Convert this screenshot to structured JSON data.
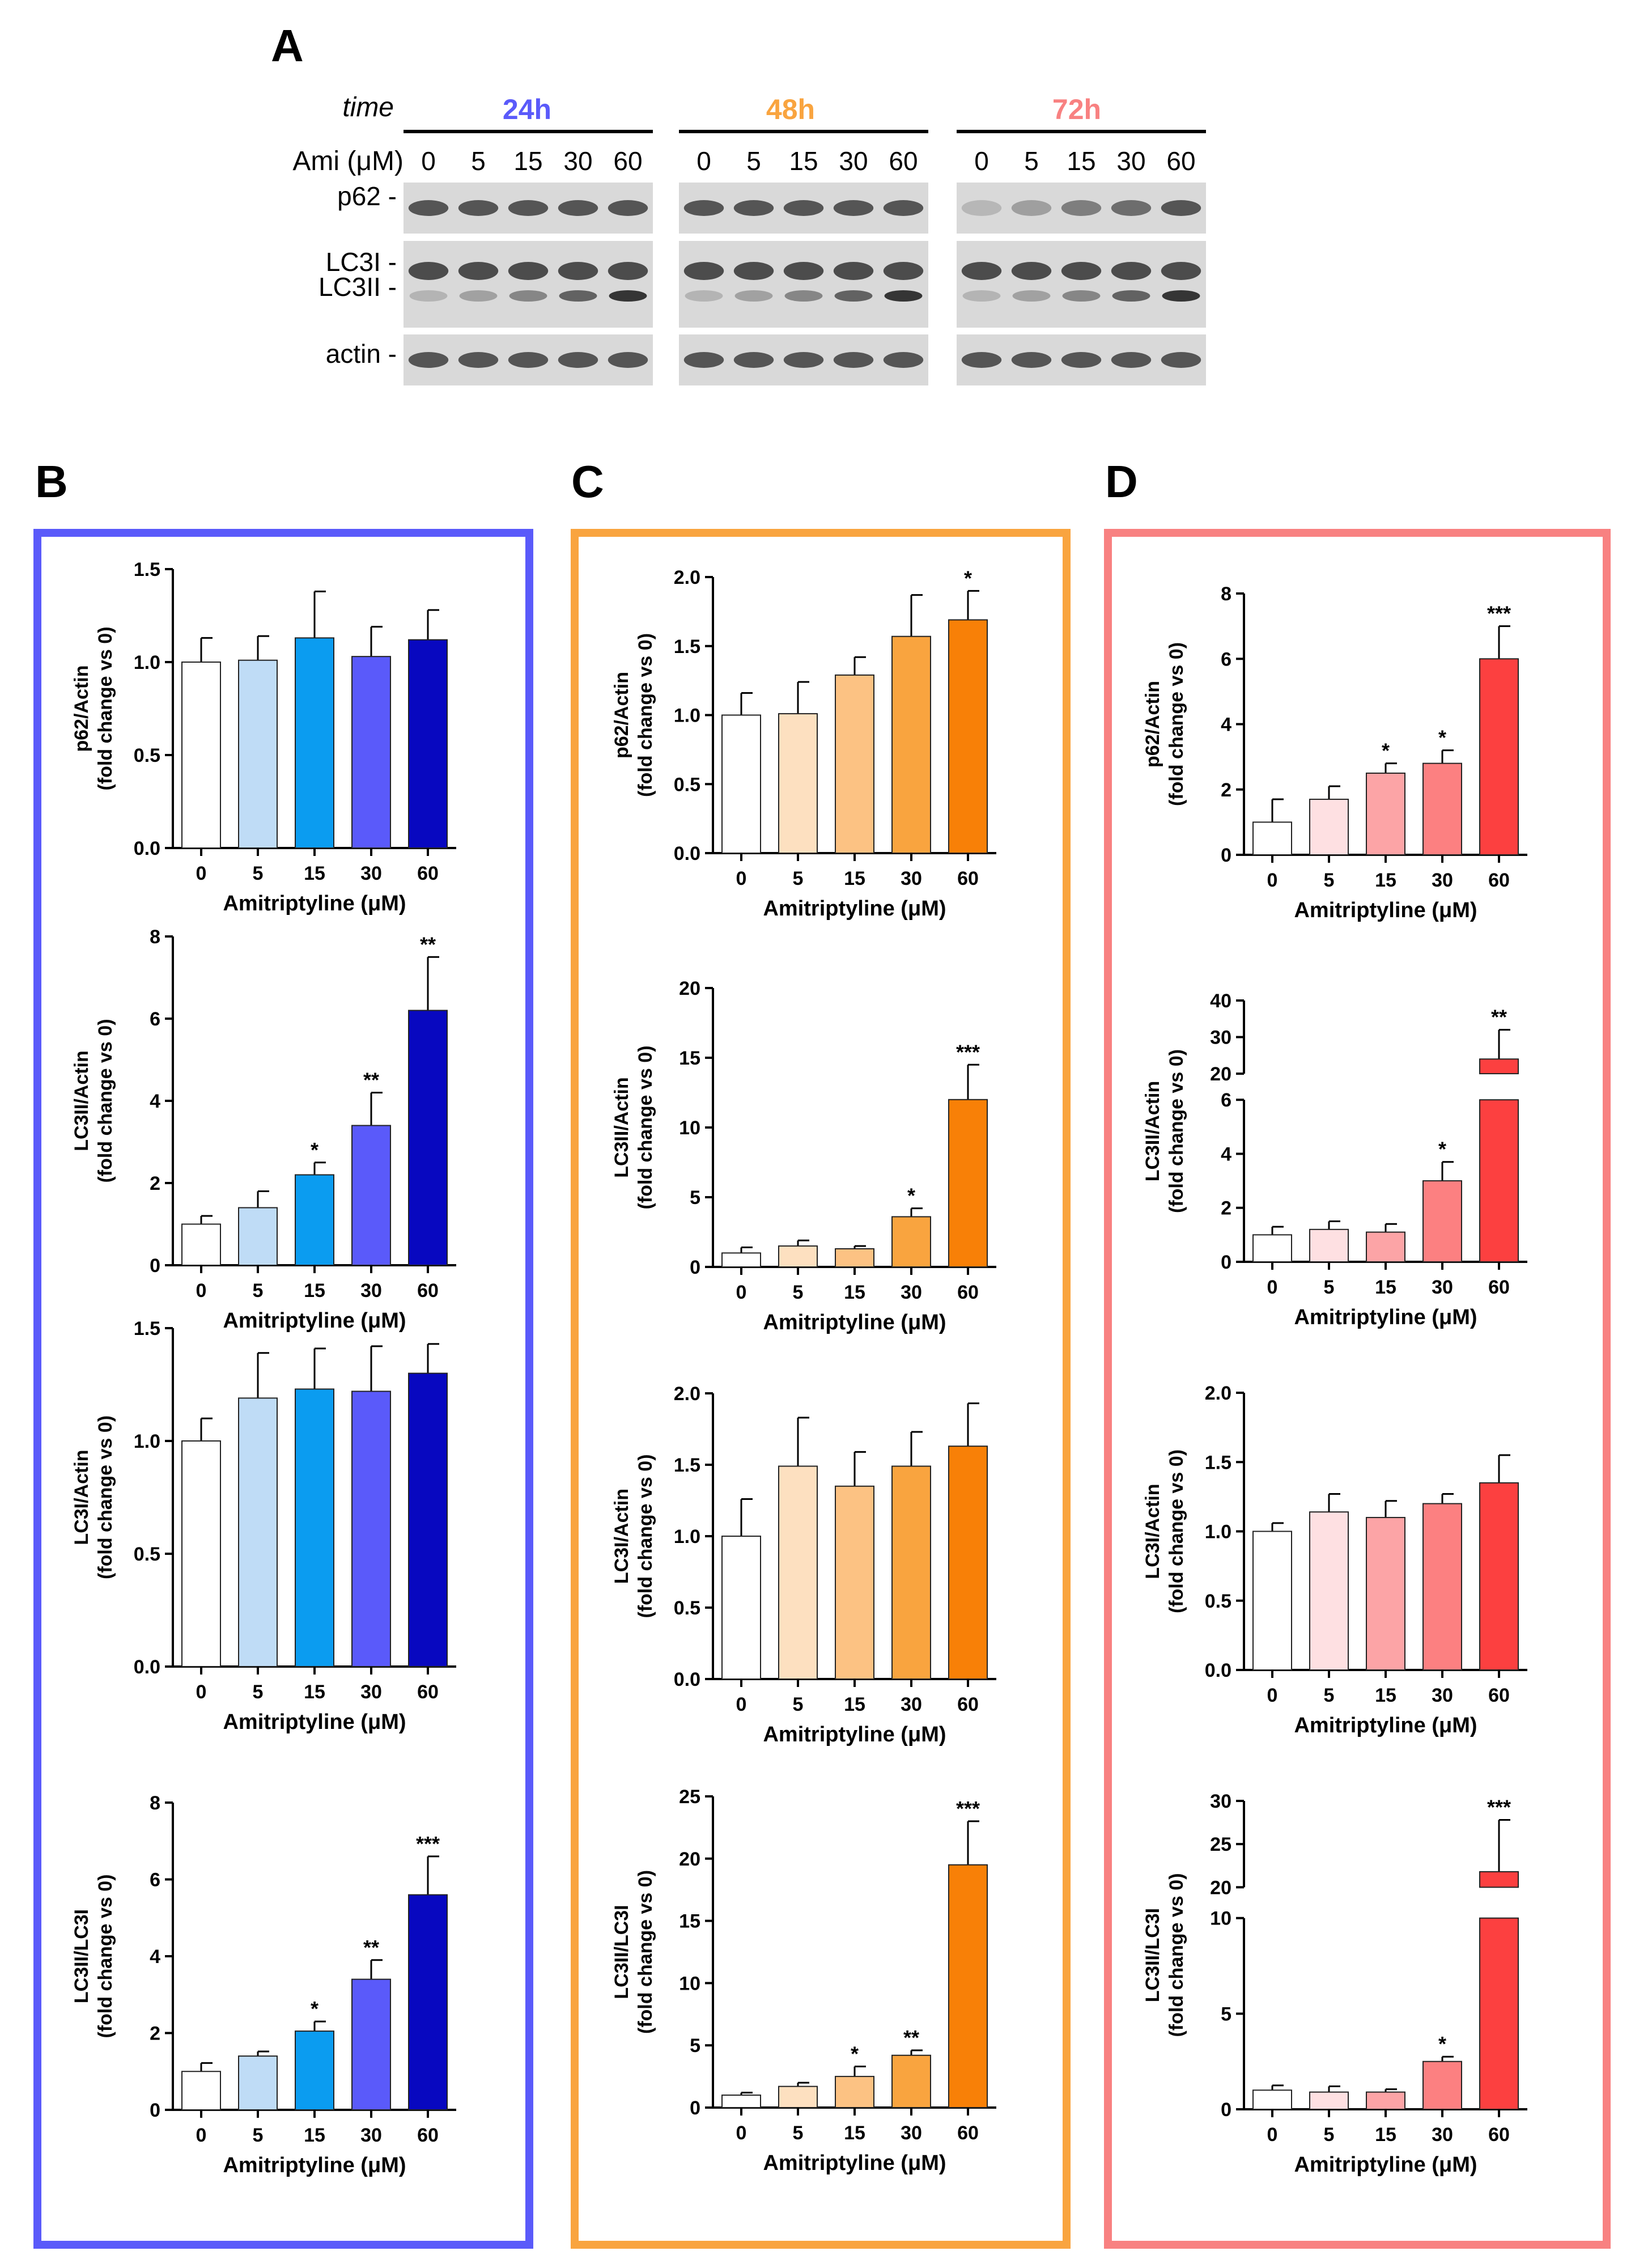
{
  "figure": {
    "panel_labels": [
      "A",
      "B",
      "C",
      "D"
    ],
    "blot": {
      "time_label": "time",
      "dose_label": "Ami (μM)",
      "groups": [
        {
          "label": "24h",
          "color": "#5a5afa"
        },
        {
          "label": "48h",
          "color": "#f9a43f"
        },
        {
          "label": "72h",
          "color": "#f88181"
        }
      ],
      "doses": [
        "0",
        "5",
        "15",
        "30",
        "60"
      ],
      "rows": [
        "p62 -",
        "LC3I -",
        "LC3II -",
        "actin -"
      ]
    },
    "frame_colors": {
      "B": "#5a5afa",
      "C": "#f9a43f",
      "D": "#f88181"
    },
    "significance_note": "*, **, *** marks shown above bars"
  },
  "chart_data": [
    {
      "id": "B1",
      "panel": "B",
      "type": "bar",
      "ylabel": [
        "p62/Actin",
        "(fold change vs 0)"
      ],
      "xlabel": "Amitriptyline (μM)",
      "categories": [
        "0",
        "5",
        "15",
        "30",
        "60"
      ],
      "values": [
        1.0,
        1.01,
        1.13,
        1.03,
        1.12
      ],
      "errors": [
        0.13,
        0.13,
        0.25,
        0.16,
        0.16
      ],
      "ylim": [
        0,
        1.5
      ],
      "yticks": [
        "0.0",
        "0.5",
        "1.0",
        "1.5"
      ],
      "sig": [
        "",
        "",
        "",
        "",
        ""
      ],
      "colors": [
        "#ffffff",
        "#bfdcf6",
        "#0b9cf0",
        "#5a5afa",
        "#0808c0"
      ]
    },
    {
      "id": "B2",
      "panel": "B",
      "type": "bar",
      "ylabel": [
        "LC3II/Actin",
        "(fold change vs 0)"
      ],
      "xlabel": "Amitriptyline (μM)",
      "categories": [
        "0",
        "5",
        "15",
        "30",
        "60"
      ],
      "values": [
        1.0,
        1.4,
        2.2,
        3.4,
        6.2
      ],
      "errors": [
        0.2,
        0.4,
        0.3,
        0.8,
        1.3
      ],
      "ylim": [
        0,
        8
      ],
      "yticks": [
        "0",
        "2",
        "4",
        "6",
        "8"
      ],
      "sig": [
        "",
        "",
        "*",
        "**",
        "**"
      ],
      "colors": [
        "#ffffff",
        "#bfdcf6",
        "#0b9cf0",
        "#5a5afa",
        "#0808c0"
      ]
    },
    {
      "id": "B3",
      "panel": "B",
      "type": "bar",
      "ylabel": [
        "LC3I/Actin",
        "(fold change vs 0)"
      ],
      "xlabel": "Amitriptyline (μM)",
      "categories": [
        "0",
        "5",
        "15",
        "30",
        "60"
      ],
      "values": [
        1.0,
        1.19,
        1.23,
        1.22,
        1.3
      ],
      "errors": [
        0.1,
        0.2,
        0.18,
        0.2,
        0.13
      ],
      "ylim": [
        0,
        1.5
      ],
      "yticks": [
        "0.0",
        "0.5",
        "1.0",
        "1.5"
      ],
      "sig": [
        "",
        "",
        "",
        "",
        ""
      ],
      "colors": [
        "#ffffff",
        "#bfdcf6",
        "#0b9cf0",
        "#5a5afa",
        "#0808c0"
      ]
    },
    {
      "id": "B4",
      "panel": "B",
      "type": "bar",
      "ylabel": [
        "LC3II/LC3I",
        "(fold change vs 0)"
      ],
      "xlabel": "Amitriptyline (μM)",
      "categories": [
        "0",
        "5",
        "15",
        "30",
        "60"
      ],
      "values": [
        1.0,
        1.4,
        2.05,
        3.4,
        5.6
      ],
      "errors": [
        0.22,
        0.12,
        0.25,
        0.5,
        1.0
      ],
      "ylim": [
        0,
        8
      ],
      "yticks": [
        "0",
        "2",
        "4",
        "6",
        "8"
      ],
      "sig": [
        "",
        "",
        "*",
        "**",
        "***"
      ],
      "colors": [
        "#ffffff",
        "#bfdcf6",
        "#0b9cf0",
        "#5a5afa",
        "#0808c0"
      ]
    },
    {
      "id": "C1",
      "panel": "C",
      "type": "bar",
      "ylabel": [
        "p62/Actin",
        "(fold change vs 0)"
      ],
      "xlabel": "Amitriptyline (μM)",
      "categories": [
        "0",
        "5",
        "15",
        "30",
        "60"
      ],
      "values": [
        1.0,
        1.01,
        1.29,
        1.57,
        1.69
      ],
      "errors": [
        0.16,
        0.23,
        0.13,
        0.3,
        0.21
      ],
      "ylim": [
        0,
        2.0
      ],
      "yticks": [
        "0.0",
        "0.5",
        "1.0",
        "1.5",
        "2.0"
      ],
      "sig": [
        "",
        "",
        "",
        "",
        "*"
      ],
      "colors": [
        "#ffffff",
        "#fde0c0",
        "#fcc283",
        "#f9a43f",
        "#f88007"
      ]
    },
    {
      "id": "C2",
      "panel": "C",
      "type": "bar",
      "ylabel": [
        "LC3II/Actin",
        "(fold change vs 0)"
      ],
      "xlabel": "Amitriptyline (μM)",
      "categories": [
        "0",
        "5",
        "15",
        "30",
        "60"
      ],
      "values": [
        1.0,
        1.5,
        1.3,
        3.6,
        12.0
      ],
      "errors": [
        0.4,
        0.4,
        0.2,
        0.6,
        2.5
      ],
      "ylim": [
        0,
        20
      ],
      "yticks": [
        "0",
        "5",
        "10",
        "15",
        "20"
      ],
      "sig": [
        "",
        "",
        "",
        "*",
        "***"
      ],
      "colors": [
        "#ffffff",
        "#fde0c0",
        "#fcc283",
        "#f9a43f",
        "#f88007"
      ]
    },
    {
      "id": "C3",
      "panel": "C",
      "type": "bar",
      "ylabel": [
        "LC3I/Actin",
        "(fold change vs 0)"
      ],
      "xlabel": "Amitriptyline (μM)",
      "categories": [
        "0",
        "5",
        "15",
        "30",
        "60"
      ],
      "values": [
        1.0,
        1.49,
        1.35,
        1.49,
        1.63
      ],
      "errors": [
        0.26,
        0.34,
        0.24,
        0.24,
        0.3
      ],
      "ylim": [
        0,
        2.0
      ],
      "yticks": [
        "0.0",
        "0.5",
        "1.0",
        "1.5",
        "2.0"
      ],
      "sig": [
        "",
        "",
        "",
        "",
        ""
      ],
      "colors": [
        "#ffffff",
        "#fde0c0",
        "#fcc283",
        "#f9a43f",
        "#f88007"
      ]
    },
    {
      "id": "C4",
      "panel": "C",
      "type": "bar",
      "ylabel": [
        "LC3II/LC3I",
        "(fold change vs 0)"
      ],
      "xlabel": "Amitriptyline (μM)",
      "categories": [
        "0",
        "5",
        "15",
        "30",
        "60"
      ],
      "values": [
        1.0,
        1.7,
        2.5,
        4.2,
        19.5
      ],
      "errors": [
        0.2,
        0.3,
        0.8,
        0.4,
        3.5
      ],
      "ylim": [
        0,
        25
      ],
      "yticks": [
        "0",
        "5",
        "10",
        "15",
        "20",
        "25"
      ],
      "sig": [
        "",
        "",
        "*",
        "**",
        "***"
      ],
      "colors": [
        "#ffffff",
        "#fde0c0",
        "#fcc283",
        "#f9a43f",
        "#f88007"
      ]
    },
    {
      "id": "D1",
      "panel": "D",
      "type": "bar",
      "ylabel": [
        "p62/Actin",
        "(fold change vs 0)"
      ],
      "xlabel": "Amitriptyline (μM)",
      "categories": [
        "0",
        "5",
        "15",
        "30",
        "60"
      ],
      "values": [
        1.0,
        1.7,
        2.5,
        2.8,
        6.0
      ],
      "errors": [
        0.7,
        0.4,
        0.3,
        0.4,
        1.0
      ],
      "ylim": [
        0,
        8
      ],
      "yticks": [
        "0",
        "2",
        "4",
        "6",
        "8"
      ],
      "sig": [
        "",
        "",
        "*",
        "*",
        "***"
      ],
      "colors": [
        "#ffffff",
        "#fee0e2",
        "#fca4a6",
        "#fc8081",
        "#fc4040"
      ]
    },
    {
      "id": "D2",
      "panel": "D",
      "type": "bar",
      "broken": true,
      "ylabel": [
        "LC3II/Actin",
        "(fold change vs 0)"
      ],
      "xlabel": "Amitriptyline (μM)",
      "categories": [
        "0",
        "5",
        "15",
        "30",
        "60"
      ],
      "values": [
        1.0,
        1.2,
        1.1,
        3.0,
        24.0
      ],
      "errors": [
        0.3,
        0.3,
        0.3,
        0.7,
        8.0
      ],
      "lower_ylim": [
        0,
        6
      ],
      "upper_ylim": [
        20,
        40
      ],
      "lower_yticks": [
        "0",
        "2",
        "4",
        "6"
      ],
      "upper_yticks": [
        "20",
        "30",
        "40"
      ],
      "sig": [
        "",
        "",
        "",
        "*",
        "**"
      ],
      "colors": [
        "#ffffff",
        "#fee0e2",
        "#fca4a6",
        "#fc8081",
        "#fc4040"
      ]
    },
    {
      "id": "D3",
      "panel": "D",
      "type": "bar",
      "ylabel": [
        "LC3I/Actin",
        "(fold change vs 0)"
      ],
      "xlabel": "Amitriptyline (μM)",
      "categories": [
        "0",
        "5",
        "15",
        "30",
        "60"
      ],
      "values": [
        1.0,
        1.14,
        1.1,
        1.2,
        1.35
      ],
      "errors": [
        0.06,
        0.13,
        0.12,
        0.07,
        0.2
      ],
      "ylim": [
        0,
        2.0
      ],
      "yticks": [
        "0.0",
        "0.5",
        "1.0",
        "1.5",
        "2.0"
      ],
      "sig": [
        "",
        "",
        "",
        "",
        ""
      ],
      "colors": [
        "#ffffff",
        "#fee0e2",
        "#fca4a6",
        "#fc8081",
        "#fc4040"
      ]
    },
    {
      "id": "D4",
      "panel": "D",
      "type": "bar",
      "broken": true,
      "ylabel": [
        "LC3II/LC3I",
        "(fold change vs 0)"
      ],
      "xlabel": "Amitriptyline (μM)",
      "categories": [
        "0",
        "5",
        "15",
        "30",
        "60"
      ],
      "values": [
        1.0,
        0.9,
        0.9,
        2.5,
        21.8
      ],
      "errors": [
        0.25,
        0.3,
        0.15,
        0.25,
        6.0
      ],
      "lower_ylim": [
        0,
        10
      ],
      "upper_ylim": [
        20,
        30
      ],
      "lower_yticks": [
        "0",
        "5",
        "10"
      ],
      "upper_yticks": [
        "20",
        "25",
        "30"
      ],
      "sig": [
        "",
        "",
        "",
        "*",
        "***"
      ],
      "colors": [
        "#ffffff",
        "#fee0e2",
        "#fca4a6",
        "#fc8081",
        "#fc4040"
      ]
    }
  ]
}
